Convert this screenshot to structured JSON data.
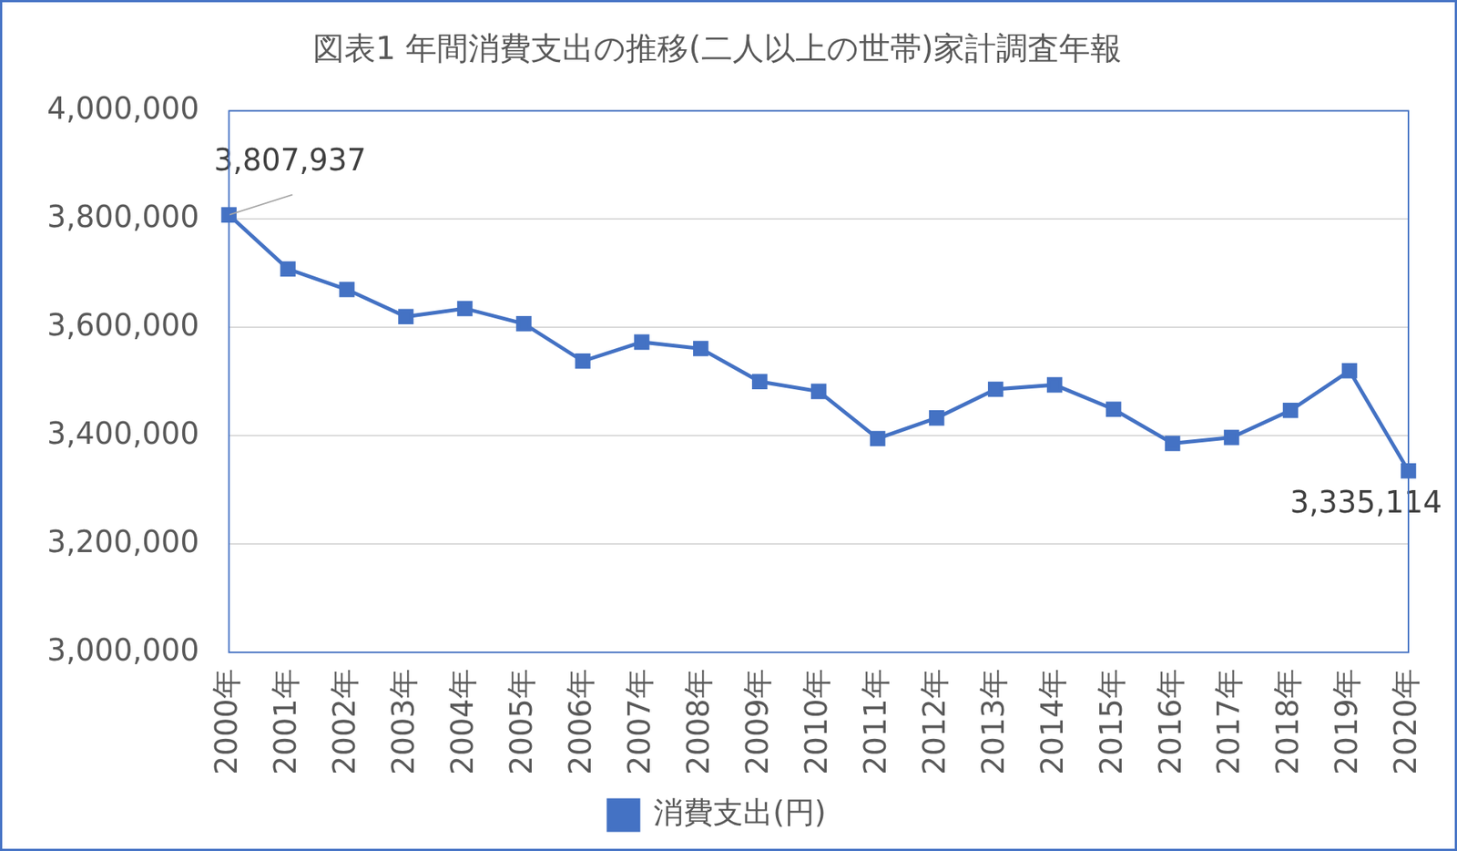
{
  "chart_data": {
    "type": "line",
    "title": "図表1 年間消費支出の推移(二人以上の世帯)家計調査年報",
    "categories": [
      "2000年",
      "2001年",
      "2002年",
      "2003年",
      "2004年",
      "2005年",
      "2006年",
      "2007年",
      "2008年",
      "2009年",
      "2010年",
      "2011年",
      "2012年",
      "2013年",
      "2014年",
      "2015年",
      "2016年",
      "2017年",
      "2018年",
      "2019年",
      "2020年"
    ],
    "series": [
      {
        "name": "消費支出(円)",
        "color": "#4472c4",
        "marker": "square",
        "line_style": "solid",
        "values": [
          3807937,
          3708000,
          3670000,
          3620000,
          3635000,
          3607000,
          3538000,
          3573000,
          3561000,
          3500000,
          3482000,
          3395000,
          3433000,
          3486000,
          3494000,
          3449000,
          3386000,
          3397000,
          3447000,
          3520000,
          3335114
        ],
        "value_labels": [
          "3,807,937",
          null,
          null,
          null,
          null,
          null,
          null,
          null,
          null,
          null,
          null,
          null,
          null,
          null,
          null,
          null,
          null,
          null,
          null,
          null,
          "3,335,114"
        ]
      }
    ],
    "data_labels": true,
    "ylim": [
      3000000,
      4000000
    ],
    "yticks": [
      {
        "value": 3000000,
        "label": "3,000,000"
      },
      {
        "value": 3200000,
        "label": "3,200,000"
      },
      {
        "value": 3400000,
        "label": "3,400,000"
      },
      {
        "value": 3600000,
        "label": "3,600,000"
      },
      {
        "value": 3800000,
        "label": "3,800,000"
      },
      {
        "value": 4000000,
        "label": "4,000,000"
      }
    ],
    "grid": true,
    "legend": "bottom"
  }
}
